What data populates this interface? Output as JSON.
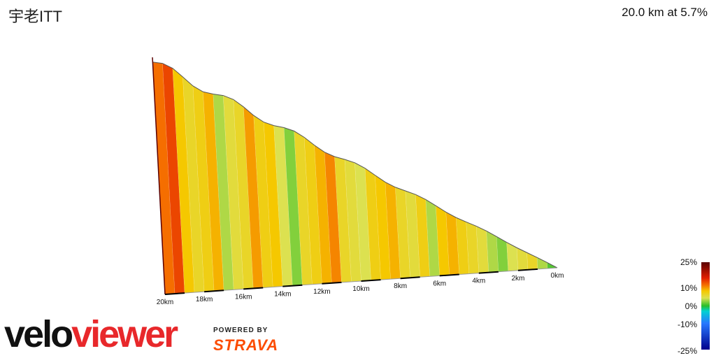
{
  "header": {
    "title": "宇老ITT",
    "summary": "20.0 km at 5.7%"
  },
  "branding": {
    "veloviewer": "veloviewer",
    "powered_by": "POWERED BY",
    "strava": "STRAVA"
  },
  "legend": {
    "labels": [
      "25%",
      "10%",
      "0%",
      "-10%",
      "-25%"
    ]
  },
  "chart_data": {
    "type": "area",
    "xlabel": "",
    "ylabel": "",
    "x_ticks": [
      "20km",
      "18km",
      "16km",
      "14km",
      "12km",
      "10km",
      "8km",
      "6km",
      "4km",
      "2km",
      "0km"
    ],
    "profile": {
      "distance_km": [
        20,
        19.5,
        19,
        18.5,
        18,
        17.5,
        17,
        16.5,
        16,
        15.5,
        15,
        14.5,
        14,
        13.5,
        13,
        12.5,
        12,
        11.5,
        11,
        10.5,
        10,
        9.5,
        9,
        8.5,
        8,
        7.5,
        7,
        6.5,
        6,
        5.5,
        5,
        4.5,
        4,
        3.5,
        3,
        2.5,
        2,
        1.5,
        1,
        0.5,
        0
      ],
      "elevation_rel": [
        1.0,
        0.97,
        0.94,
        0.92,
        0.9,
        0.87,
        0.85,
        0.82,
        0.79,
        0.77,
        0.74,
        0.71,
        0.68,
        0.65,
        0.62,
        0.6,
        0.57,
        0.54,
        0.52,
        0.49,
        0.46,
        0.44,
        0.41,
        0.38,
        0.36,
        0.33,
        0.31,
        0.28,
        0.26,
        0.23,
        0.21,
        0.18,
        0.16,
        0.13,
        0.11,
        0.09,
        0.07,
        0.05,
        0.03,
        0.01,
        0.0
      ]
    },
    "gradient_pct": [
      12,
      14,
      8,
      6,
      7,
      9,
      3,
      5,
      6,
      10,
      7,
      8,
      4,
      2,
      6,
      7,
      9,
      11,
      6,
      5,
      4,
      7,
      8,
      9,
      6,
      5,
      7,
      3,
      8,
      9,
      7,
      6,
      5,
      3,
      2,
      4,
      5,
      6,
      3,
      1
    ]
  }
}
